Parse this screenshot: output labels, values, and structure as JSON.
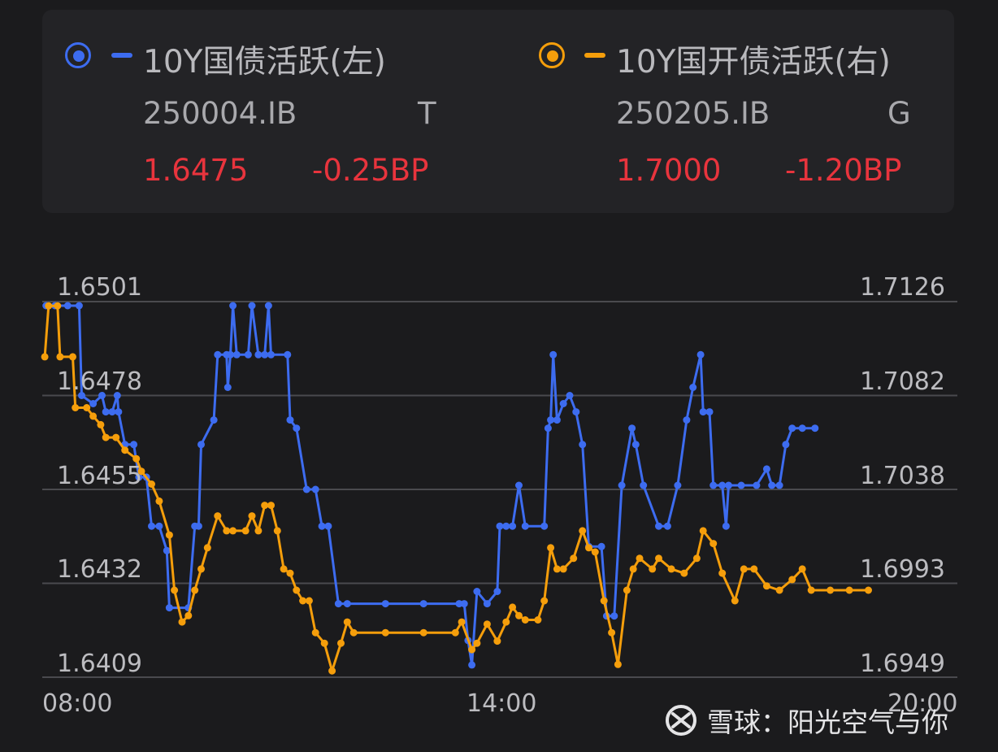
{
  "legend": [
    {
      "title": "10Y国债活跃(左)",
      "code": "250004.IB",
      "tag": "T",
      "value": "1.6475",
      "change": "-0.25BP",
      "color": "#3d6cf0"
    },
    {
      "title": "10Y国开债活跃(右)",
      "code": "250205.IB",
      "tag": "G",
      "value": "1.7000",
      "change": "-1.20BP",
      "color": "#f59e0b"
    }
  ],
  "watermark": {
    "text": "雪球：阳光空气与你"
  },
  "chart_data": {
    "type": "line",
    "x_ticks": [
      "08:00",
      "14:00",
      "20:00"
    ],
    "y_left": {
      "ticks": [
        "1.6501",
        "1.6478",
        "1.6455",
        "1.6432",
        "1.6409"
      ],
      "range": [
        1.6409,
        1.6501
      ]
    },
    "y_right": {
      "ticks": [
        "1.7126",
        "1.7082",
        "1.7038",
        "1.6993",
        "1.6949"
      ],
      "range": [
        1.6949,
        1.7126
      ]
    },
    "grid": true,
    "series": [
      {
        "name": "10Y国债活跃(左)",
        "axis": "left",
        "color": "#3d6cf0",
        "points": [
          [
            "08:03",
            1.65
          ],
          [
            "08:10",
            1.65
          ],
          [
            "08:20",
            1.65
          ],
          [
            "08:29",
            1.65
          ],
          [
            "08:31",
            1.6478
          ],
          [
            "08:40",
            1.6476
          ],
          [
            "08:47",
            1.6478
          ],
          [
            "08:50",
            1.6474
          ],
          [
            "08:55",
            1.6474
          ],
          [
            "08:59",
            1.6478
          ],
          [
            "09:00",
            1.6474
          ],
          [
            "09:05",
            1.6466
          ],
          [
            "09:12",
            1.6466
          ],
          [
            "09:16",
            1.6458
          ],
          [
            "09:22",
            1.6458
          ],
          [
            "09:26",
            1.6446
          ],
          [
            "09:32",
            1.6446
          ],
          [
            "09:38",
            1.644
          ],
          [
            "09:40",
            1.6426
          ],
          [
            "09:55",
            1.6426
          ],
          [
            "10:00",
            1.6446
          ],
          [
            "10:03",
            1.6446
          ],
          [
            "10:05",
            1.6466
          ],
          [
            "10:15",
            1.6472
          ],
          [
            "10:18",
            1.6488
          ],
          [
            "10:25",
            1.6488
          ],
          [
            "10:26",
            1.648
          ],
          [
            "10:28",
            1.6488
          ],
          [
            "10:30",
            1.65
          ],
          [
            "10:33",
            1.6488
          ],
          [
            "10:42",
            1.6488
          ],
          [
            "10:45",
            1.65
          ],
          [
            "10:50",
            1.6488
          ],
          [
            "10:55",
            1.6488
          ],
          [
            "10:58",
            1.65
          ],
          [
            "11:00",
            1.6488
          ],
          [
            "11:13",
            1.6488
          ],
          [
            "11:15",
            1.6472
          ],
          [
            "11:20",
            1.647
          ],
          [
            "11:28",
            1.6455
          ],
          [
            "11:35",
            1.6455
          ],
          [
            "11:40",
            1.6446
          ],
          [
            "11:45",
            1.6446
          ],
          [
            "11:53",
            1.6427
          ],
          [
            "12:00",
            1.6427
          ],
          [
            "12:30",
            1.6427
          ],
          [
            "13:00",
            1.6427
          ],
          [
            "13:28",
            1.6427
          ],
          [
            "13:32",
            1.6427
          ],
          [
            "13:35",
            1.6418
          ],
          [
            "13:38",
            1.6412
          ],
          [
            "13:42",
            1.643
          ],
          [
            "13:50",
            1.6427
          ],
          [
            "13:58",
            1.643
          ],
          [
            "14:00",
            1.6446
          ],
          [
            "14:05",
            1.6446
          ],
          [
            "14:10",
            1.6446
          ],
          [
            "14:15",
            1.6456
          ],
          [
            "14:20",
            1.6446
          ],
          [
            "14:35",
            1.6446
          ],
          [
            "14:38",
            1.647
          ],
          [
            "14:40",
            1.6472
          ],
          [
            "14:42",
            1.6488
          ],
          [
            "14:45",
            1.6472
          ],
          [
            "14:50",
            1.6476
          ],
          [
            "14:55",
            1.6478
          ],
          [
            "15:00",
            1.6474
          ],
          [
            "15:05",
            1.6466
          ],
          [
            "15:10",
            1.6441
          ],
          [
            "15:20",
            1.6441
          ],
          [
            "15:24",
            1.6424
          ],
          [
            "15:30",
            1.6424
          ],
          [
            "15:36",
            1.6456
          ],
          [
            "15:44",
            1.647
          ],
          [
            "15:47",
            1.6466
          ],
          [
            "15:53",
            1.6456
          ],
          [
            "16:05",
            1.6446
          ],
          [
            "16:12",
            1.6446
          ],
          [
            "16:20",
            1.6456
          ],
          [
            "16:27",
            1.6472
          ],
          [
            "16:32",
            1.648
          ],
          [
            "16:38",
            1.6488
          ],
          [
            "16:40",
            1.6474
          ],
          [
            "16:45",
            1.6474
          ],
          [
            "16:48",
            1.6456
          ],
          [
            "16:55",
            1.6456
          ],
          [
            "16:58",
            1.6446
          ],
          [
            "17:00",
            1.6456
          ],
          [
            "17:10",
            1.6456
          ],
          [
            "17:22",
            1.6456
          ],
          [
            "17:30",
            1.646
          ],
          [
            "17:34",
            1.6456
          ],
          [
            "17:40",
            1.6456
          ],
          [
            "17:45",
            1.6466
          ],
          [
            "17:50",
            1.647
          ],
          [
            "17:58",
            1.647
          ],
          [
            "18:08",
            1.647
          ]
        ]
      },
      {
        "name": "10Y国开债活跃(右)",
        "axis": "right",
        "color": "#f59e0b",
        "points": [
          [
            "08:02",
            1.71
          ],
          [
            "08:05",
            1.7124
          ],
          [
            "08:12",
            1.7124
          ],
          [
            "08:14",
            1.71
          ],
          [
            "08:24",
            1.71
          ],
          [
            "08:26",
            1.7076
          ],
          [
            "08:35",
            1.7076
          ],
          [
            "08:40",
            1.7072
          ],
          [
            "08:46",
            1.7068
          ],
          [
            "08:50",
            1.7062
          ],
          [
            "08:58",
            1.7062
          ],
          [
            "09:05",
            1.7056
          ],
          [
            "09:14",
            1.7052
          ],
          [
            "09:18",
            1.7046
          ],
          [
            "09:26",
            1.704
          ],
          [
            "09:32",
            1.7032
          ],
          [
            "09:40",
            1.7016
          ],
          [
            "09:44",
            1.699
          ],
          [
            "09:50",
            1.6975
          ],
          [
            "09:55",
            1.6978
          ],
          [
            "10:00",
            1.699
          ],
          [
            "10:05",
            1.7
          ],
          [
            "10:10",
            1.701
          ],
          [
            "10:18",
            1.7025
          ],
          [
            "10:25",
            1.7018
          ],
          [
            "10:30",
            1.7018
          ],
          [
            "10:40",
            1.7018
          ],
          [
            "10:45",
            1.7025
          ],
          [
            "10:50",
            1.7018
          ],
          [
            "10:55",
            1.703
          ],
          [
            "11:00",
            1.703
          ],
          [
            "11:05",
            1.7018
          ],
          [
            "11:10",
            1.7
          ],
          [
            "11:15",
            1.6998
          ],
          [
            "11:20",
            1.699
          ],
          [
            "11:25",
            1.6985
          ],
          [
            "11:30",
            1.6985
          ],
          [
            "11:35",
            1.697
          ],
          [
            "11:42",
            1.6965
          ],
          [
            "11:48",
            1.6952
          ],
          [
            "11:55",
            1.6965
          ],
          [
            "12:00",
            1.6975
          ],
          [
            "12:05",
            1.697
          ],
          [
            "12:30",
            1.697
          ],
          [
            "13:00",
            1.697
          ],
          [
            "13:25",
            1.697
          ],
          [
            "13:30",
            1.6975
          ],
          [
            "13:38",
            1.6962
          ],
          [
            "13:42",
            1.6965
          ],
          [
            "13:50",
            1.6974
          ],
          [
            "13:58",
            1.6966
          ],
          [
            "14:05",
            1.6975
          ],
          [
            "14:10",
            1.6982
          ],
          [
            "14:15",
            1.6978
          ],
          [
            "14:20",
            1.6976
          ],
          [
            "14:30",
            1.6976
          ],
          [
            "14:35",
            1.6985
          ],
          [
            "14:40",
            1.701
          ],
          [
            "14:45",
            1.7
          ],
          [
            "14:50",
            1.7
          ],
          [
            "14:58",
            1.7005
          ],
          [
            "15:05",
            1.7018
          ],
          [
            "15:10",
            1.701
          ],
          [
            "15:15",
            1.7008
          ],
          [
            "15:22",
            1.6985
          ],
          [
            "15:28",
            1.697
          ],
          [
            "15:33",
            1.6955
          ],
          [
            "15:40",
            1.699
          ],
          [
            "15:45",
            1.7
          ],
          [
            "15:50",
            1.7005
          ],
          [
            "16:00",
            1.7
          ],
          [
            "16:05",
            1.7005
          ],
          [
            "16:15",
            1.7
          ],
          [
            "16:25",
            1.6998
          ],
          [
            "16:35",
            1.7005
          ],
          [
            "16:40",
            1.7018
          ],
          [
            "16:48",
            1.7012
          ],
          [
            "16:55",
            1.6998
          ],
          [
            "17:05",
            1.6985
          ],
          [
            "17:12",
            1.7
          ],
          [
            "17:20",
            1.7
          ],
          [
            "17:30",
            1.6992
          ],
          [
            "17:40",
            1.699
          ],
          [
            "17:50",
            1.6995
          ],
          [
            "17:58",
            1.7
          ],
          [
            "18:05",
            1.699
          ],
          [
            "18:20",
            1.699
          ],
          [
            "18:35",
            1.699
          ],
          [
            "18:50",
            1.699
          ]
        ]
      }
    ]
  }
}
